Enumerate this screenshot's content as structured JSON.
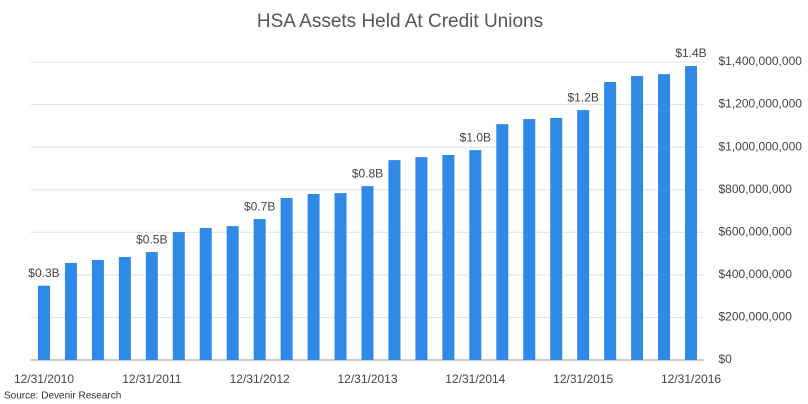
{
  "chart_data": {
    "type": "bar",
    "title": "HSA Assets Held At Credit Unions",
    "source": "Source: Devenir Research",
    "categories": [
      "12/31/2010",
      null,
      null,
      null,
      "12/31/2011",
      null,
      null,
      null,
      "12/31/2012",
      null,
      null,
      null,
      "12/31/2013",
      null,
      null,
      null,
      "12/31/2014",
      null,
      null,
      null,
      "12/31/2015",
      null,
      null,
      null,
      "12/31/2016"
    ],
    "values": [
      349000000,
      456000000,
      470000000,
      484000000,
      507000000,
      601000000,
      620000000,
      629000000,
      662000000,
      761000000,
      780000000,
      784000000,
      817000000,
      939000000,
      953000000,
      963000000,
      986000000,
      1108000000,
      1132000000,
      1137000000,
      1174000000,
      1306000000,
      1334000000,
      1343000000,
      1381000000
    ],
    "value_labels": [
      "$0.3B",
      null,
      null,
      null,
      "$0.5B",
      null,
      null,
      null,
      "$0.7B",
      null,
      null,
      null,
      "$0.8B",
      null,
      null,
      null,
      "$1.0B",
      null,
      null,
      null,
      "$1.2B",
      null,
      null,
      null,
      "$1.4B"
    ],
    "color": "#2e8ae6",
    "ylim": [
      0,
      1400000000
    ],
    "yticks": [
      {
        "value": 0,
        "label": "$0"
      },
      {
        "value": 200000000,
        "label": "$200,000,000"
      },
      {
        "value": 400000000,
        "label": "$400,000,000"
      },
      {
        "value": 600000000,
        "label": "$600,000,000"
      },
      {
        "value": 800000000,
        "label": "$800,000,000"
      },
      {
        "value": 1000000000,
        "label": "$1,000,000,000"
      },
      {
        "value": 1200000000,
        "label": "$1,200,000,000"
      },
      {
        "value": 1400000000,
        "label": "$1,400,000,000"
      }
    ],
    "grid": true
  }
}
